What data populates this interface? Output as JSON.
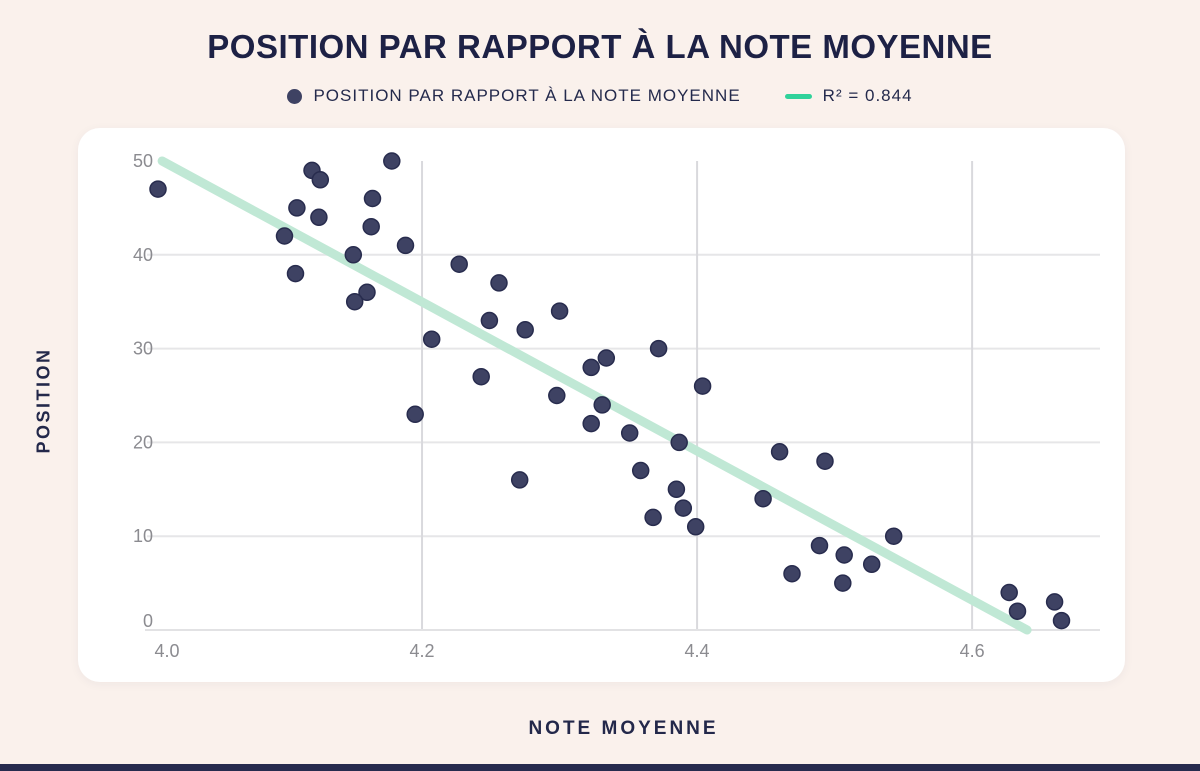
{
  "page": {
    "background": "#faf1ec",
    "bottom_bar_color": "#272b4e"
  },
  "header": {
    "title": "POSITION PAR RAPPORT À LA NOTE MOYENNE"
  },
  "legend": {
    "series_label": "POSITION PAR RAPPORT À LA NOTE MOYENNE",
    "series_marker_color": "#3e4263",
    "trend_label": "R² = 0.844",
    "trend_swatch_color": "#30d29a"
  },
  "chart_data": {
    "type": "scatter",
    "title": "POSITION PAR RAPPORT À LA NOTE MOYENNE",
    "xlabel": "NOTE MOYENNE",
    "ylabel": "POSITION",
    "xlim": [
      4.0,
      4.693
    ],
    "ylim": [
      0,
      50
    ],
    "x_ticks": [
      4.0,
      4.2,
      4.4,
      4.6
    ],
    "y_ticks": [
      0,
      10,
      20,
      30,
      40,
      50
    ],
    "grid": true,
    "legend_position": "top",
    "series": [
      {
        "name": "POSITION PAR RAPPORT À LA NOTE MOYENNE",
        "type": "scatter",
        "marker_color": "#3e4263",
        "marker_stroke": "#282c4e",
        "points": [
          [
            4.178,
            50
          ],
          [
            4.12,
            49
          ],
          [
            4.126,
            48
          ],
          [
            4.008,
            47
          ],
          [
            4.164,
            46
          ],
          [
            4.109,
            45
          ],
          [
            4.125,
            44
          ],
          [
            4.163,
            43
          ],
          [
            4.1,
            42
          ],
          [
            4.188,
            41
          ],
          [
            4.15,
            40
          ],
          [
            4.227,
            39
          ],
          [
            4.108,
            38
          ],
          [
            4.256,
            37
          ],
          [
            4.16,
            36
          ],
          [
            4.151,
            35
          ],
          [
            4.3,
            34
          ],
          [
            4.249,
            33
          ],
          [
            4.275,
            32
          ],
          [
            4.207,
            31
          ],
          [
            4.372,
            30
          ],
          [
            4.334,
            29
          ],
          [
            4.323,
            28
          ],
          [
            4.243,
            27
          ],
          [
            4.404,
            26
          ],
          [
            4.298,
            25
          ],
          [
            4.331,
            24
          ],
          [
            4.195,
            23
          ],
          [
            4.323,
            22
          ],
          [
            4.351,
            21
          ],
          [
            4.387,
            20
          ],
          [
            4.46,
            19
          ],
          [
            4.493,
            18
          ],
          [
            4.359,
            17
          ],
          [
            4.271,
            16
          ],
          [
            4.385,
            15
          ],
          [
            4.448,
            14
          ],
          [
            4.39,
            13
          ],
          [
            4.368,
            12
          ],
          [
            4.399,
            11
          ],
          [
            4.543,
            10
          ],
          [
            4.489,
            9
          ],
          [
            4.507,
            8
          ],
          [
            4.527,
            7
          ],
          [
            4.469,
            6
          ],
          [
            4.506,
            5
          ],
          [
            4.627,
            4
          ],
          [
            4.66,
            3
          ],
          [
            4.633,
            2
          ],
          [
            4.665,
            1
          ]
        ]
      },
      {
        "name": "R² = 0.844",
        "type": "trendline",
        "r_squared": 0.844,
        "color": "#c0e8d5",
        "line": {
          "x": [
            4.011,
            4.64
          ],
          "y": [
            50,
            0
          ]
        }
      }
    ],
    "style": {
      "h_grid_color": "#e6e6e8",
      "v_grid_color": "#d9d9dd",
      "axis_line_color": "#e2e2e4",
      "tick_label_color": "#8b8b90"
    }
  }
}
